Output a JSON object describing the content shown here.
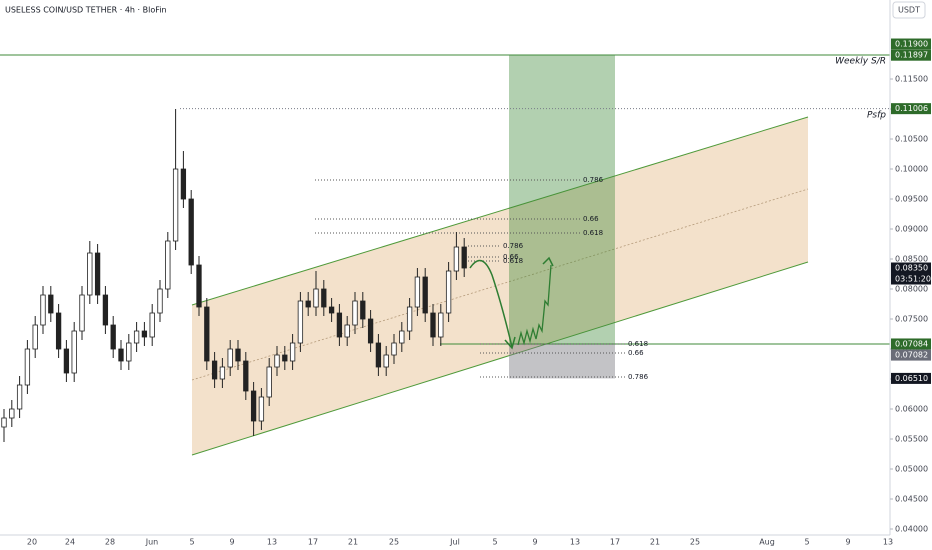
{
  "chart_data": {
    "type": "candlestick",
    "title": "USELESS COIN/USD TETHER · 4h · BloFin",
    "currency": "USDT",
    "ylim": [
      0.039,
      0.12817
    ],
    "yticks": [
      {
        "value": 0.04,
        "label": "0.04000"
      },
      {
        "value": 0.045,
        "label": "0.04500"
      },
      {
        "value": 0.05,
        "label": "0.05000"
      },
      {
        "value": 0.055,
        "label": "0.05500"
      },
      {
        "value": 0.06,
        "label": "0.06000"
      },
      {
        "value": 0.065,
        "label": "0.06500"
      },
      {
        "value": 0.07,
        "label": "0.07000"
      },
      {
        "value": 0.075,
        "label": "0.07500"
      },
      {
        "value": 0.08,
        "label": "0.08000"
      },
      {
        "value": 0.085,
        "label": "0.08500"
      },
      {
        "value": 0.09,
        "label": "0.09000"
      },
      {
        "value": 0.095,
        "label": "0.09500"
      },
      {
        "value": 0.1,
        "label": "0.10000"
      },
      {
        "value": 0.105,
        "label": "0.10500"
      },
      {
        "value": 0.11,
        "label": "0.11000"
      },
      {
        "value": 0.115,
        "label": "0.11500"
      }
    ],
    "xticks": [
      "20",
      "24",
      "28",
      "Jun",
      "5",
      "9",
      "13",
      "17",
      "21",
      "25",
      "Jul",
      "5",
      "9",
      "13",
      "17",
      "21",
      "25",
      "Aug",
      "5",
      "9",
      "13"
    ],
    "open": [
      0.057,
      0.0585,
      0.06,
      0.064,
      0.07,
      0.074,
      0.079,
      0.076,
      0.07,
      0.066,
      0.073,
      0.079,
      0.086,
      0.079,
      0.074,
      0.07,
      0.068,
      0.071,
      0.073,
      0.072,
      0.076,
      0.08,
      0.088,
      0.1,
      0.095,
      0.084,
      0.077,
      0.068,
      0.065,
      0.067,
      0.07,
      0.068,
      0.063,
      0.058,
      0.062,
      0.067,
      0.069,
      0.068,
      0.071,
      0.078,
      0.077,
      0.08,
      0.077,
      0.076,
      0.072,
      0.074,
      0.078,
      0.075,
      0.071,
      0.067,
      0.069,
      0.071,
      0.073,
      0.077,
      0.082,
      0.076,
      0.072,
      0.076,
      0.083,
      0.087
    ],
    "high": [
      0.06,
      0.0615,
      0.0655,
      0.0715,
      0.0755,
      0.0805,
      0.0805,
      0.0775,
      0.0715,
      0.0745,
      0.0805,
      0.088,
      0.0875,
      0.0805,
      0.0755,
      0.0715,
      0.0725,
      0.0745,
      0.0745,
      0.0775,
      0.0815,
      0.0895,
      0.11,
      0.103,
      0.0965,
      0.0855,
      0.0785,
      0.0695,
      0.0685,
      0.0715,
      0.0715,
      0.0695,
      0.0645,
      0.0635,
      0.0685,
      0.0705,
      0.0705,
      0.0725,
      0.0795,
      0.0795,
      0.083,
      0.0815,
      0.0785,
      0.0775,
      0.0755,
      0.0795,
      0.0795,
      0.0765,
      0.0725,
      0.0705,
      0.0725,
      0.0745,
      0.0785,
      0.0835,
      0.0835,
      0.0775,
      0.0775,
      0.0845,
      0.0895,
      0.0885
    ],
    "low": [
      0.0545,
      0.057,
      0.0585,
      0.0625,
      0.0685,
      0.0725,
      0.0745,
      0.0685,
      0.0645,
      0.0645,
      0.0715,
      0.0775,
      0.0775,
      0.0725,
      0.0685,
      0.0665,
      0.0665,
      0.0695,
      0.0705,
      0.0705,
      0.0745,
      0.0785,
      0.0865,
      0.0935,
      0.0825,
      0.0755,
      0.0665,
      0.0635,
      0.0635,
      0.0655,
      0.0665,
      0.0615,
      0.0555,
      0.0565,
      0.0605,
      0.0655,
      0.0665,
      0.0665,
      0.0695,
      0.0755,
      0.0755,
      0.0755,
      0.0745,
      0.0705,
      0.0705,
      0.0725,
      0.0735,
      0.0695,
      0.0655,
      0.0655,
      0.0675,
      0.0695,
      0.0715,
      0.0755,
      0.0745,
      0.0705,
      0.0705,
      0.0745,
      0.0815,
      0.082
    ],
    "close": [
      0.0585,
      0.06,
      0.064,
      0.07,
      0.074,
      0.079,
      0.076,
      0.07,
      0.066,
      0.073,
      0.079,
      0.086,
      0.079,
      0.074,
      0.07,
      0.068,
      0.071,
      0.073,
      0.072,
      0.076,
      0.08,
      0.088,
      0.1,
      0.095,
      0.084,
      0.077,
      0.068,
      0.065,
      0.067,
      0.07,
      0.068,
      0.063,
      0.058,
      0.062,
      0.067,
      0.069,
      0.068,
      0.071,
      0.078,
      0.077,
      0.08,
      0.077,
      0.076,
      0.072,
      0.074,
      0.078,
      0.075,
      0.071,
      0.067,
      0.069,
      0.071,
      0.073,
      0.077,
      0.082,
      0.076,
      0.072,
      0.076,
      0.083,
      0.087,
      0.0835
    ],
    "price_labels": [
      {
        "value": 0.119,
        "label": "0.11900"
      },
      {
        "value": 0.11897,
        "label": "0.11897"
      },
      {
        "value": 0.11006,
        "label": "0.11006"
      },
      {
        "value": 0.0835,
        "label": "0.08350"
      },
      {
        "value": 0.07084,
        "label": "0.07084"
      },
      {
        "value": 0.07082,
        "label": "0.07082"
      },
      {
        "value": 0.0651,
        "label": "0.06510"
      }
    ],
    "countdown": "03:51:20",
    "annotations": {
      "weekly": "Weekly S/R",
      "psfp": "Psfp"
    },
    "fib_upper": [
      "0.786",
      "0.66",
      "0.618"
    ],
    "fib_mid": [
      "0.786",
      "0.66",
      "0.618"
    ],
    "fib_lower": [
      "0.618",
      "0.66",
      "0.786"
    ]
  }
}
